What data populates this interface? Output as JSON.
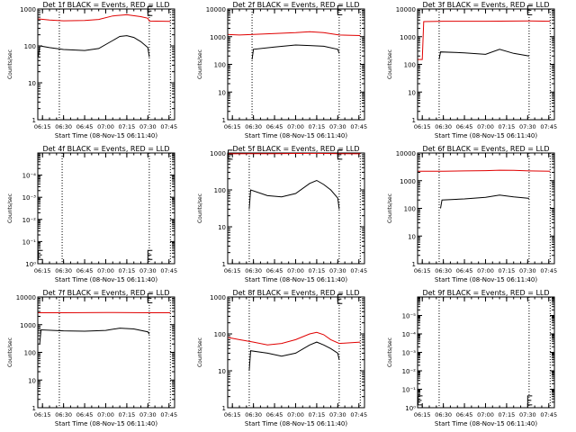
{
  "colors": {
    "events": "#000000",
    "lld": "#e00000",
    "marker": "#000000"
  },
  "chart_data": [
    {
      "type": "line",
      "title": "Det 1f BLACK = Events, RED = LLD",
      "ylabel": "Counts/sec",
      "xlabel": "Start Time (08-Nov-15 06:11:40)",
      "x_ticks": [
        "06:15",
        "06:30",
        "06:45",
        "07:00",
        "07:15",
        "07:30",
        "07:45"
      ],
      "y_scale": "log",
      "y_ticks": [
        "1",
        "10",
        "100",
        "1000"
      ],
      "ylim": [
        1,
        1000
      ],
      "vlines": [
        "06:27",
        "07:31",
        "07:46"
      ],
      "series": [
        {
          "name": "Events",
          "color": "black",
          "x": [
            "06:12",
            "06:13",
            "06:20",
            "06:30",
            "06:45",
            "06:55",
            "07:05",
            "07:10",
            "07:15",
            "07:20",
            "07:25",
            "07:30",
            "07:31"
          ],
          "y": [
            50,
            100,
            90,
            80,
            75,
            85,
            140,
            180,
            190,
            170,
            130,
            90,
            50
          ]
        },
        {
          "name": "LLD",
          "color": "red",
          "x": [
            "06:12",
            "06:20",
            "06:30",
            "06:45",
            "06:55",
            "07:05",
            "07:15",
            "07:25",
            "07:30",
            "07:31",
            "07:46"
          ],
          "y": [
            540,
            500,
            480,
            490,
            520,
            650,
            700,
            620,
            560,
            470,
            460
          ]
        }
      ],
      "markers": [
        {
          "x": "07:30",
          "y": 880
        }
      ]
    },
    {
      "type": "line",
      "title": "Det 2f BLACK = Events, RED = LLD",
      "ylabel": "Counts/sec",
      "xlabel": "Start Time (08-Nov-15 06:11:40)",
      "x_ticks": [
        "06:15",
        "06:30",
        "06:45",
        "07:00",
        "07:15",
        "07:30",
        "07:45"
      ],
      "y_scale": "log",
      "y_ticks": [
        "1",
        "10",
        "100",
        "1000",
        "10000"
      ],
      "ylim": [
        1,
        10000
      ],
      "vlines": [
        "06:29",
        "07:31",
        "07:46"
      ],
      "series": [
        {
          "name": "Events",
          "color": "black",
          "x": [
            "06:29",
            "06:30",
            "06:45",
            "07:00",
            "07:10",
            "07:20",
            "07:30",
            "07:31"
          ],
          "y": [
            150,
            350,
            420,
            500,
            480,
            450,
            350,
            250
          ]
        },
        {
          "name": "LLD",
          "color": "red",
          "x": [
            "06:12",
            "06:20",
            "06:30",
            "06:45",
            "07:00",
            "07:10",
            "07:20",
            "07:31",
            "07:46"
          ],
          "y": [
            1200,
            1150,
            1200,
            1300,
            1400,
            1500,
            1400,
            1150,
            1100
          ]
        }
      ],
      "markers": [
        {
          "x": "07:30",
          "y": 9000
        }
      ]
    },
    {
      "type": "line",
      "title": "Det 3f BLACK = Events, RED = LLD",
      "ylabel": "Counts/sec",
      "xlabel": "Start Time (08-Nov-15 06:11:40)",
      "x_ticks": [
        "06:15",
        "06:30",
        "06:45",
        "07:00",
        "07:15",
        "07:30",
        "07:45"
      ],
      "y_scale": "log",
      "y_ticks": [
        "1",
        "10",
        "100",
        "1000",
        "10000"
      ],
      "ylim": [
        1,
        10000
      ],
      "vlines": [
        "06:27",
        "07:31",
        "07:46"
      ],
      "series": [
        {
          "name": "Events",
          "color": "black",
          "x": [
            "06:27",
            "06:28",
            "06:45",
            "07:00",
            "07:10",
            "07:20",
            "07:31"
          ],
          "y": [
            150,
            280,
            260,
            230,
            350,
            250,
            200
          ]
        },
        {
          "name": "LLD",
          "color": "red",
          "x": [
            "06:12",
            "06:15",
            "06:16",
            "06:30",
            "07:00",
            "07:31",
            "07:46"
          ],
          "y": [
            150,
            150,
            3500,
            3600,
            3600,
            3700,
            3600
          ]
        }
      ],
      "markers": [
        {
          "x": "07:30",
          "y": 9000
        }
      ]
    },
    {
      "type": "line",
      "title": "Det 4f BLACK = Events, RED = LLD",
      "ylabel": "Counts/sec",
      "xlabel": "Start Time (08-Nov-15 06:11:40)",
      "x_ticks": [
        "06:15",
        "06:30",
        "06:45",
        "07:00",
        "07:15",
        "07:30",
        "07:45"
      ],
      "y_scale": "log",
      "y_ticks": [
        "10⁰",
        "10⁻¹",
        "10⁻²",
        "10⁻³",
        "10⁻⁴"
      ],
      "ylim": [
        1,
        100000
      ],
      "vlines": [
        "06:29",
        "07:31",
        "07:46"
      ],
      "series": [],
      "markers": [
        {
          "x": "06:12",
          "y": 2.5
        },
        {
          "x": "07:30",
          "y": 2.5
        }
      ]
    },
    {
      "type": "line",
      "title": "Det 5f BLACK = Events, RED = LLD",
      "ylabel": "Counts/sec",
      "xlabel": "Start Time (08-Nov-15 06:11:40)",
      "x_ticks": [
        "06:15",
        "06:30",
        "06:45",
        "07:00",
        "07:15",
        "07:30",
        "07:45"
      ],
      "y_scale": "log",
      "y_ticks": [
        "1",
        "10",
        "100",
        "1000"
      ],
      "ylim": [
        1,
        1000
      ],
      "vlines": [
        "06:27",
        "07:31",
        "07:46"
      ],
      "series": [
        {
          "name": "Events",
          "color": "black",
          "x": [
            "06:27",
            "06:28",
            "06:40",
            "06:50",
            "07:00",
            "07:10",
            "07:15",
            "07:20",
            "07:25",
            "07:30",
            "07:31"
          ],
          "y": [
            30,
            100,
            70,
            65,
            80,
            150,
            180,
            140,
            100,
            60,
            30
          ]
        },
        {
          "name": "LLD",
          "color": "red",
          "x": [
            "06:12",
            "06:30",
            "06:45",
            "07:00",
            "07:15",
            "07:31",
            "07:46"
          ],
          "y": [
            950,
            960,
            960,
            970,
            980,
            960,
            950
          ]
        }
      ],
      "markers": [
        {
          "x": "06:12",
          "y": 900
        },
        {
          "x": "07:30",
          "y": 900
        }
      ]
    },
    {
      "type": "line",
      "title": "Det 6f BLACK = Events, RED = LLD",
      "ylabel": "Counts/sec",
      "xlabel": "Start Time (08-Nov-15 06:11:40)",
      "x_ticks": [
        "06:15",
        "06:30",
        "06:45",
        "07:00",
        "07:15",
        "07:30",
        "07:45"
      ],
      "y_scale": "log",
      "y_ticks": [
        "1",
        "10",
        "100",
        "1000",
        "10000"
      ],
      "ylim": [
        1,
        10000
      ],
      "vlines": [
        "06:27",
        "07:31",
        "07:46"
      ],
      "series": [
        {
          "name": "Events",
          "color": "black",
          "x": [
            "06:28",
            "06:29",
            "06:45",
            "07:00",
            "07:10",
            "07:20",
            "07:31"
          ],
          "y": [
            100,
            200,
            220,
            250,
            300,
            260,
            230
          ]
        },
        {
          "name": "LLD",
          "color": "red",
          "x": [
            "06:12",
            "06:30",
            "06:45",
            "07:00",
            "07:10",
            "07:20",
            "07:31",
            "07:46"
          ],
          "y": [
            2200,
            2200,
            2250,
            2300,
            2400,
            2350,
            2250,
            2200
          ]
        }
      ],
      "markers": []
    },
    {
      "type": "line",
      "title": "Det 7f BLACK = Events, RED = LLD",
      "ylabel": "Counts/sec",
      "xlabel": "Start Time (08-Nov-15 06:11:40)",
      "x_ticks": [
        "06:15",
        "06:30",
        "06:45",
        "07:00",
        "07:15",
        "07:30",
        "07:45"
      ],
      "y_scale": "log",
      "y_ticks": [
        "1",
        "10",
        "100",
        "1000",
        "10000"
      ],
      "ylim": [
        1,
        10000
      ],
      "vlines": [
        "06:27",
        "07:31",
        "07:46"
      ],
      "series": [
        {
          "name": "Events",
          "color": "black",
          "x": [
            "06:13",
            "06:14",
            "06:30",
            "06:45",
            "07:00",
            "07:10",
            "07:20",
            "07:30",
            "07:31"
          ],
          "y": [
            200,
            650,
            600,
            580,
            620,
            750,
            700,
            550,
            450
          ]
        },
        {
          "name": "LLD",
          "color": "red",
          "x": [
            "06:12",
            "06:30",
            "07:00",
            "07:31",
            "07:46"
          ],
          "y": [
            2700,
            2700,
            2750,
            2700,
            2700
          ]
        }
      ],
      "markers": [
        {
          "x": "07:30",
          "y": 9000
        }
      ]
    },
    {
      "type": "line",
      "title": "Det 8f BLACK = Events, RED = LLD",
      "ylabel": "Counts/sec",
      "xlabel": "Start Time (08-Nov-15 06:11:40)",
      "x_ticks": [
        "06:15",
        "06:30",
        "06:45",
        "07:00",
        "07:15",
        "07:30",
        "07:45"
      ],
      "y_scale": "log",
      "y_ticks": [
        "1",
        "10",
        "100",
        "1000"
      ],
      "ylim": [
        1,
        1000
      ],
      "vlines": [
        "06:27",
        "07:31",
        "07:46"
      ],
      "series": [
        {
          "name": "Events",
          "color": "black",
          "x": [
            "06:27",
            "06:28",
            "06:40",
            "06:50",
            "07:00",
            "07:10",
            "07:15",
            "07:20",
            "07:25",
            "07:30",
            "07:31"
          ],
          "y": [
            10,
            35,
            30,
            25,
            30,
            50,
            60,
            50,
            40,
            30,
            20
          ]
        },
        {
          "name": "LLD",
          "color": "red",
          "x": [
            "06:12",
            "06:20",
            "06:30",
            "06:40",
            "06:50",
            "07:00",
            "07:10",
            "07:15",
            "07:20",
            "07:25",
            "07:31",
            "07:46"
          ],
          "y": [
            80,
            70,
            60,
            50,
            55,
            70,
            100,
            110,
            95,
            70,
            55,
            60
          ]
        }
      ],
      "markers": [
        {
          "x": "07:30",
          "y": 880
        }
      ]
    },
    {
      "type": "line",
      "title": "Det 9f BLACK = Events, RED = LLD",
      "ylabel": "Counts/sec",
      "xlabel": "Start Time (08-Nov-15 06:11:40)",
      "x_ticks": [
        "06:15",
        "06:30",
        "06:45",
        "07:00",
        "07:15",
        "07:30",
        "07:45"
      ],
      "y_scale": "log",
      "y_ticks": [
        "10⁰",
        "10⁻¹",
        "10⁻²",
        "10⁻³",
        "10⁻⁴",
        "10⁻⁵"
      ],
      "ylim": [
        1,
        1000000
      ],
      "vlines": [
        "06:27",
        "07:31",
        "07:46"
      ],
      "series": [],
      "markers": [
        {
          "x": "06:12",
          "y": 2.5
        },
        {
          "x": "07:30",
          "y": 2.5
        }
      ]
    }
  ]
}
